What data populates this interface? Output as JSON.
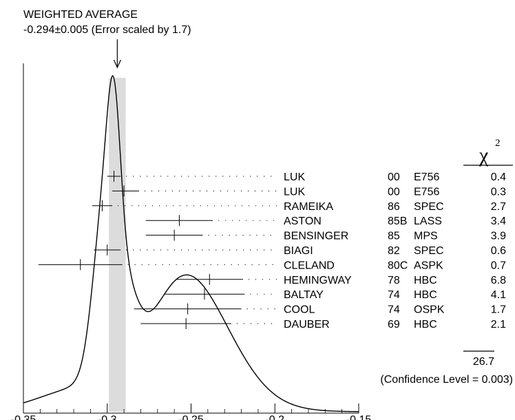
{
  "chart_data": {
    "type": "ideogram",
    "header": {
      "line1": "WEIGHTED AVERAGE",
      "line2": "-0.294±0.005 (Error scaled by 1.7)"
    },
    "weighted_average": {
      "value": -0.294,
      "error": 0.005
    },
    "xlim": [
      -0.35,
      -0.15
    ],
    "x_ticks": [
      {
        "value": -0.35,
        "label": "-0.35"
      },
      {
        "value": -0.3,
        "label": "-0.3"
      },
      {
        "value": -0.25,
        "label": "-0.25"
      },
      {
        "value": -0.2,
        "label": "-0.2"
      },
      {
        "value": -0.15,
        "label": "-0.15"
      }
    ],
    "chi2_symbol": "χ",
    "chi2_superscript": "2",
    "measurements": [
      {
        "author": "LUK",
        "year": "00",
        "tech": "E756",
        "value": -0.296,
        "err_low": 0.004,
        "err_high": 0.004,
        "chi2": "0.4"
      },
      {
        "author": "LUK",
        "year": "00",
        "tech": "E756",
        "value": -0.29,
        "err_low": 0.007,
        "err_high": 0.009,
        "chi2": "0.3"
      },
      {
        "author": "RAMEIKA",
        "year": "86",
        "tech": "SPEC",
        "value": -0.303,
        "err_low": 0.006,
        "err_high": 0.006,
        "chi2": "2.7"
      },
      {
        "author": "ASTON",
        "year": "85B",
        "tech": "LASS",
        "value": -0.257,
        "err_low": 0.02,
        "err_high": 0.02,
        "chi2": "3.4"
      },
      {
        "author": "BENSINGER",
        "year": "85",
        "tech": "MPS",
        "value": -0.26,
        "err_low": 0.017,
        "err_high": 0.017,
        "chi2": "3.9"
      },
      {
        "author": "BIAGI",
        "year": "82",
        "tech": "SPEC",
        "value": -0.3,
        "err_low": 0.008,
        "err_high": 0.008,
        "chi2": "0.6"
      },
      {
        "author": "CLELAND",
        "year": "80C",
        "tech": "ASPK",
        "value": -0.316,
        "err_low": 0.025,
        "err_high": 0.025,
        "chi2": "0.7"
      },
      {
        "author": "HEMINGWAY",
        "year": "78",
        "tech": "HBC",
        "value": -0.239,
        "err_low": 0.02,
        "err_high": 0.02,
        "chi2": "6.8"
      },
      {
        "author": "BALTAY",
        "year": "74",
        "tech": "HBC",
        "value": -0.242,
        "err_low": 0.024,
        "err_high": 0.024,
        "chi2": "4.1"
      },
      {
        "author": "COOL",
        "year": "74",
        "tech": "OSPK",
        "value": -0.252,
        "err_low": 0.032,
        "err_high": 0.032,
        "chi2": "1.7"
      },
      {
        "author": "DAUBER",
        "year": "69",
        "tech": "HBC",
        "value": -0.253,
        "err_low": 0.027,
        "err_high": 0.027,
        "chi2": "2.1"
      }
    ],
    "chi2_total": "26.7",
    "confidence_text": "(Confidence Level = 0.003)"
  }
}
